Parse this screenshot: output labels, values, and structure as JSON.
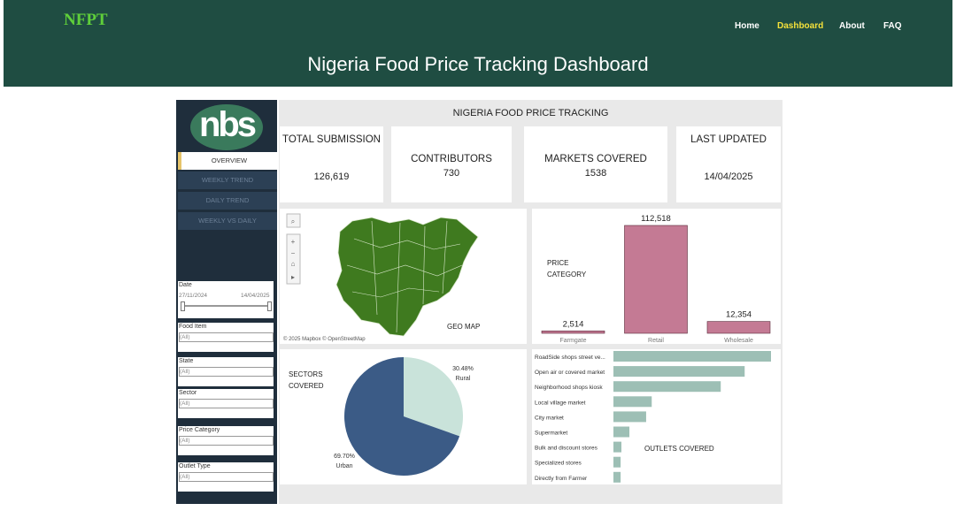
{
  "header": {
    "logo": "NFPT",
    "nav": [
      "Home",
      "Dashboard",
      "About",
      "FAQ"
    ],
    "title": "Nigeria Food Price Tracking Dashboard"
  },
  "sidebar": {
    "logo": "nbs",
    "menu": [
      "OVERVIEW",
      "WEEKLY TREND",
      "DAILY TREND",
      "WEEKLY VS DAILY"
    ],
    "date_filter": {
      "label": "Date",
      "start": "27/11/2024",
      "end": "14/04/2025"
    },
    "filters": [
      {
        "label": "Food Item",
        "value": "(All)"
      },
      {
        "label": "State",
        "value": "(All)"
      },
      {
        "label": "Sector",
        "value": "(All)"
      },
      {
        "label": "Price Category",
        "value": "(All)"
      },
      {
        "label": "Outlet Type",
        "value": "(All)"
      }
    ]
  },
  "dashboard_title": "NIGERIA FOOD PRICE TRACKING",
  "kpis": [
    {
      "label": "TOTAL SUBMISSION",
      "value": "126,619"
    },
    {
      "label": "CONTRIBUTORS",
      "value": "730"
    },
    {
      "label": "MARKETS COVERED",
      "value": "1538"
    },
    {
      "label": "LAST UPDATED",
      "value": "14/04/2025"
    }
  ],
  "map": {
    "title": "GEO MAP",
    "attribution": "© 2025 Mapbox © OpenStreetMap"
  },
  "price_category": {
    "type": "bar",
    "title": "PRICE CATEGORY",
    "categories": [
      "Farmgate",
      "Retail",
      "Wholesale"
    ],
    "values": [
      2514,
      112518,
      12354
    ],
    "value_labels": [
      "2,514",
      "112,518",
      "12,354"
    ],
    "color": "#c47a94"
  },
  "sectors": {
    "type": "pie",
    "title": "SECTORS COVERED",
    "categories": [
      "Rural",
      "Urban"
    ],
    "values": [
      30.48,
      69.7
    ],
    "value_labels": [
      "30.48%",
      "69.70%"
    ],
    "colors": [
      "#c9e3da",
      "#3b5b86"
    ]
  },
  "outlets": {
    "type": "bar",
    "orientation": "horizontal",
    "title": "OUTLETS COVERED",
    "categories": [
      "RoadSide shops street ve...",
      "Open air or covered market",
      "Neighborhood shops kiosk",
      "Local village market",
      "City market",
      "Supermarket",
      "Bulk and discount stores",
      "Specialized stores",
      "Directly from Farmer"
    ],
    "values": [
      39500,
      32900,
      26900,
      9600,
      8200,
      4000,
      2000,
      1800,
      1800
    ],
    "color": "#9dbfb5"
  }
}
